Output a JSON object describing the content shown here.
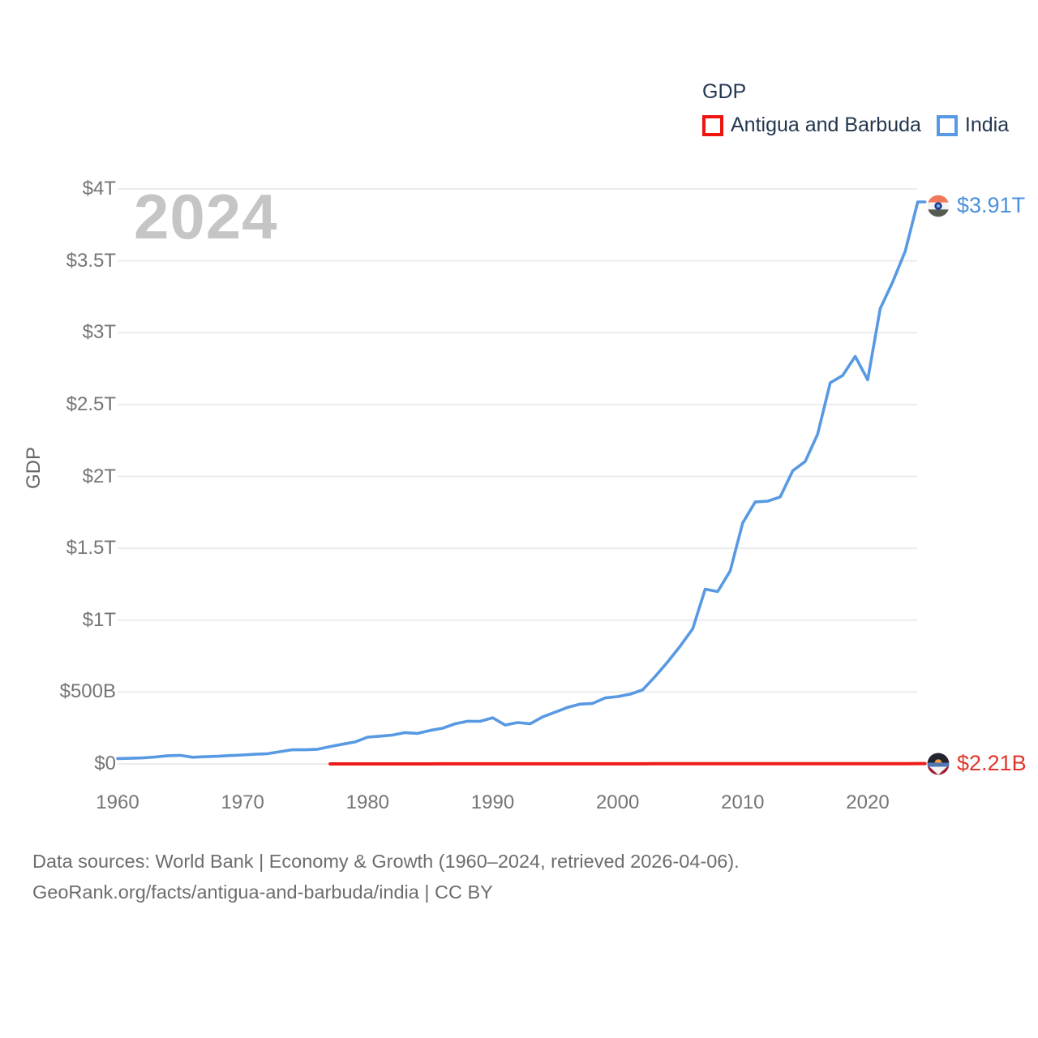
{
  "legend": {
    "title": "GDP",
    "items": [
      {
        "label": "Antigua and Barbuda",
        "color": "#ee1511"
      },
      {
        "label": "India",
        "color": "#5799e2"
      }
    ]
  },
  "watermark_year": "2024",
  "chart_data": {
    "type": "line",
    "title": "GDP",
    "ylabel": "GDP",
    "xlabel": "",
    "unit": "billion USD",
    "grid": true,
    "legend_position": "top-right",
    "xlim": [
      1960,
      2024
    ],
    "ylim_billions": [
      0,
      4000
    ],
    "x_ticks": [
      1960,
      1970,
      1980,
      1990,
      2000,
      2010,
      2020
    ],
    "y_ticks": [
      {
        "value": 0,
        "label": "$0"
      },
      {
        "value": 500,
        "label": "$500B"
      },
      {
        "value": 1000,
        "label": "$1T"
      },
      {
        "value": 1500,
        "label": "$1.5T"
      },
      {
        "value": 2000,
        "label": "$2T"
      },
      {
        "value": 2500,
        "label": "$2.5T"
      },
      {
        "value": 3000,
        "label": "$3T"
      },
      {
        "value": 3500,
        "label": "$3.5T"
      },
      {
        "value": 4000,
        "label": "$4T"
      }
    ],
    "series": [
      {
        "name": "Antigua and Barbuda",
        "color": "#ee1c19",
        "start_year": 1977,
        "end_label": "$2.21B",
        "values_billions": [
          0.08,
          0.1,
          0.11,
          0.13,
          0.15,
          0.17,
          0.18,
          0.21,
          0.24,
          0.29,
          0.33,
          0.39,
          0.42,
          0.46,
          0.48,
          0.5,
          0.54,
          0.59,
          0.58,
          0.63,
          0.68,
          0.73,
          0.77,
          0.83,
          0.8,
          0.81,
          0.86,
          0.92,
          1.02,
          1.16,
          1.31,
          1.37,
          1.22,
          1.15,
          1.14,
          1.21,
          1.19,
          1.27,
          1.35,
          1.46,
          1.47,
          1.61,
          1.69,
          1.37,
          1.47,
          1.7,
          1.87,
          2.21
        ]
      },
      {
        "name": "India",
        "color": "#5799e2",
        "start_year": 1960,
        "end_label": "$3.91T",
        "values_billions": [
          37,
          39,
          42,
          48,
          57,
          60,
          46,
          50,
          53,
          58,
          62,
          67,
          71,
          85,
          99,
          98,
          102,
          121,
          137,
          153,
          186,
          193,
          201,
          218,
          212,
          233,
          248,
          279,
          297,
          296,
          321,
          270,
          288,
          279,
          327,
          360,
          393,
          416,
          421,
          459,
          468,
          485,
          515,
          608,
          709,
          820,
          940,
          1216,
          1199,
          1342,
          1676,
          1823,
          1828,
          1857,
          2039,
          2104,
          2295,
          2651,
          2703,
          2835,
          2672,
          3167,
          3353,
          3567,
          3910
        ]
      }
    ]
  },
  "footer": {
    "line1": "Data sources: World Bank | Economy & Growth (1960–2024, retrieved 2026-04-06).",
    "line2": "GeoRank.org/facts/antigua-and-barbuda/india | CC BY"
  }
}
